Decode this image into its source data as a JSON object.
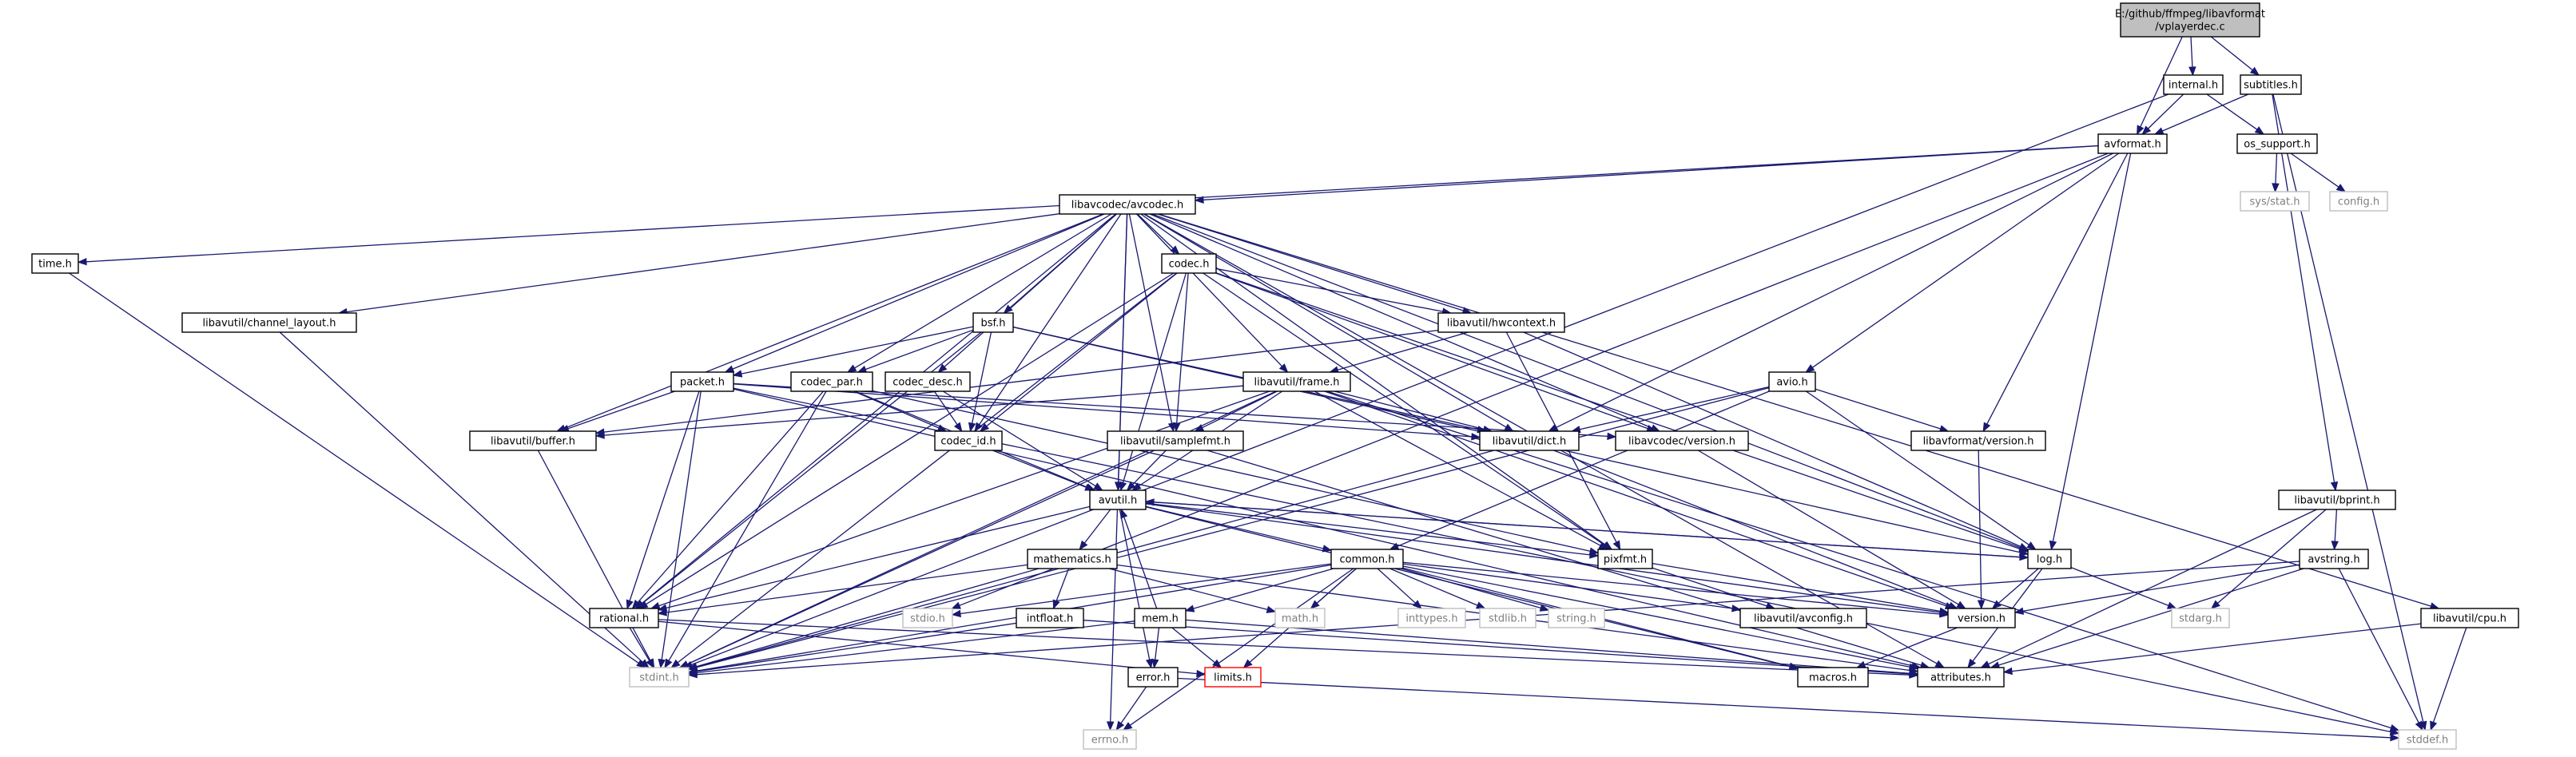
{
  "diagram": {
    "nodes": [
      {
        "id": "root",
        "lines": [
          "E:/github/ffmpeg/libavformat",
          "/vplayerdec.c"
        ],
        "kind": "root"
      },
      {
        "id": "internal",
        "lines": [
          "internal.h"
        ],
        "kind": "doc"
      },
      {
        "id": "subtitles",
        "lines": [
          "subtitles.h"
        ],
        "kind": "doc"
      },
      {
        "id": "avformat",
        "lines": [
          "avformat.h"
        ],
        "kind": "doc"
      },
      {
        "id": "os_support",
        "lines": [
          "os_support.h"
        ],
        "kind": "doc"
      },
      {
        "id": "sys_stat",
        "lines": [
          "sys/stat.h"
        ],
        "kind": "sys"
      },
      {
        "id": "config",
        "lines": [
          "config.h"
        ],
        "kind": "sys"
      },
      {
        "id": "avcodec",
        "lines": [
          "libavcodec/avcodec.h"
        ],
        "kind": "doc"
      },
      {
        "id": "time",
        "lines": [
          "time.h"
        ],
        "kind": "doc"
      },
      {
        "id": "codec",
        "lines": [
          "codec.h"
        ],
        "kind": "doc"
      },
      {
        "id": "channel_layout",
        "lines": [
          "libavutil/channel_layout.h"
        ],
        "kind": "doc"
      },
      {
        "id": "bsf",
        "lines": [
          "bsf.h"
        ],
        "kind": "doc"
      },
      {
        "id": "hwcontext",
        "lines": [
          "libavutil/hwcontext.h"
        ],
        "kind": "doc"
      },
      {
        "id": "packet",
        "lines": [
          "packet.h"
        ],
        "kind": "doc"
      },
      {
        "id": "codec_par",
        "lines": [
          "codec_par.h"
        ],
        "kind": "doc"
      },
      {
        "id": "codec_desc",
        "lines": [
          "codec_desc.h"
        ],
        "kind": "doc"
      },
      {
        "id": "frame",
        "lines": [
          "libavutil/frame.h"
        ],
        "kind": "doc"
      },
      {
        "id": "avio",
        "lines": [
          "avio.h"
        ],
        "kind": "doc"
      },
      {
        "id": "buffer",
        "lines": [
          "libavutil/buffer.h"
        ],
        "kind": "doc"
      },
      {
        "id": "codec_id",
        "lines": [
          "codec_id.h"
        ],
        "kind": "doc"
      },
      {
        "id": "samplefmt",
        "lines": [
          "libavutil/samplefmt.h"
        ],
        "kind": "doc"
      },
      {
        "id": "dict",
        "lines": [
          "libavutil/dict.h"
        ],
        "kind": "doc"
      },
      {
        "id": "avcodec_version",
        "lines": [
          "libavcodec/version.h"
        ],
        "kind": "doc"
      },
      {
        "id": "avformat_version",
        "lines": [
          "libavformat/version.h"
        ],
        "kind": "doc"
      },
      {
        "id": "bprint",
        "lines": [
          "libavutil/bprint.h"
        ],
        "kind": "doc"
      },
      {
        "id": "avutil",
        "lines": [
          "avutil.h"
        ],
        "kind": "doc"
      },
      {
        "id": "pixfmt",
        "lines": [
          "pixfmt.h"
        ],
        "kind": "doc"
      },
      {
        "id": "log",
        "lines": [
          "log.h"
        ],
        "kind": "doc"
      },
      {
        "id": "avstring",
        "lines": [
          "avstring.h"
        ],
        "kind": "doc"
      },
      {
        "id": "mathematics",
        "lines": [
          "mathematics.h"
        ],
        "kind": "doc"
      },
      {
        "id": "common",
        "lines": [
          "common.h"
        ],
        "kind": "doc"
      },
      {
        "id": "rational",
        "lines": [
          "rational.h"
        ],
        "kind": "doc"
      },
      {
        "id": "stdio",
        "lines": [
          "stdio.h"
        ],
        "kind": "sys"
      },
      {
        "id": "intfloat",
        "lines": [
          "intfloat.h"
        ],
        "kind": "doc"
      },
      {
        "id": "mem",
        "lines": [
          "mem.h"
        ],
        "kind": "doc"
      },
      {
        "id": "math",
        "lines": [
          "math.h"
        ],
        "kind": "sys"
      },
      {
        "id": "inttypes",
        "lines": [
          "inttypes.h"
        ],
        "kind": "sys"
      },
      {
        "id": "stdlib",
        "lines": [
          "stdlib.h"
        ],
        "kind": "sys"
      },
      {
        "id": "string",
        "lines": [
          "string.h"
        ],
        "kind": "sys"
      },
      {
        "id": "avconfig",
        "lines": [
          "libavutil/avconfig.h"
        ],
        "kind": "doc"
      },
      {
        "id": "version",
        "lines": [
          "version.h"
        ],
        "kind": "doc"
      },
      {
        "id": "stdarg",
        "lines": [
          "stdarg.h"
        ],
        "kind": "sys"
      },
      {
        "id": "cpu",
        "lines": [
          "libavutil/cpu.h"
        ],
        "kind": "doc"
      },
      {
        "id": "stdint",
        "lines": [
          "stdint.h"
        ],
        "kind": "sys"
      },
      {
        "id": "error",
        "lines": [
          "error.h"
        ],
        "kind": "doc"
      },
      {
        "id": "limits",
        "lines": [
          "limits.h"
        ],
        "kind": "warn"
      },
      {
        "id": "macros",
        "lines": [
          "macros.h"
        ],
        "kind": "doc"
      },
      {
        "id": "attributes",
        "lines": [
          "attributes.h"
        ],
        "kind": "doc"
      },
      {
        "id": "errno",
        "lines": [
          "errno.h"
        ],
        "kind": "sys"
      },
      {
        "id": "stddef",
        "lines": [
          "stddef.h"
        ],
        "kind": "sys"
      }
    ],
    "edges": [
      [
        "root",
        "internal"
      ],
      [
        "root",
        "subtitles"
      ],
      [
        "root",
        "avformat"
      ],
      [
        "internal",
        "avformat"
      ],
      [
        "internal",
        "os_support"
      ],
      [
        "internal",
        "stdint"
      ],
      [
        "subtitles",
        "avformat"
      ],
      [
        "subtitles",
        "bprint"
      ],
      [
        "subtitles",
        "stddef"
      ],
      [
        "avformat",
        "time"
      ],
      [
        "avformat",
        "stdio"
      ],
      [
        "avformat",
        "avcodec"
      ],
      [
        "avformat",
        "dict"
      ],
      [
        "avformat",
        "log"
      ],
      [
        "avformat",
        "avio"
      ],
      [
        "avformat",
        "avformat_version"
      ],
      [
        "os_support",
        "sys_stat"
      ],
      [
        "os_support",
        "config"
      ],
      [
        "time",
        "stdint"
      ],
      [
        "avcodec",
        "errno"
      ],
      [
        "avcodec",
        "channel_layout"
      ],
      [
        "avcodec",
        "buffer"
      ],
      [
        "avcodec",
        "packet"
      ],
      [
        "avcodec",
        "codec_par"
      ],
      [
        "avcodec",
        "codec_desc"
      ],
      [
        "avcodec",
        "bsf"
      ],
      [
        "avcodec",
        "codec"
      ],
      [
        "avcodec",
        "hwcontext"
      ],
      [
        "avcodec",
        "frame"
      ],
      [
        "avcodec",
        "samplefmt"
      ],
      [
        "avcodec",
        "dict"
      ],
      [
        "avcodec",
        "avutil"
      ],
      [
        "avcodec",
        "codec_id"
      ],
      [
        "avcodec",
        "avcodec_version"
      ],
      [
        "avcodec",
        "log"
      ],
      [
        "avcodec",
        "pixfmt"
      ],
      [
        "avcodec",
        "rational"
      ],
      [
        "avcodec",
        "attributes"
      ],
      [
        "avcodec",
        "cpu"
      ],
      [
        "channel_layout",
        "stdint"
      ],
      [
        "codec",
        "codec_id"
      ],
      [
        "codec",
        "avutil"
      ],
      [
        "codec",
        "hwcontext"
      ],
      [
        "codec",
        "samplefmt"
      ],
      [
        "codec",
        "log"
      ],
      [
        "codec",
        "pixfmt"
      ],
      [
        "codec",
        "rational"
      ],
      [
        "codec",
        "avcodec_version"
      ],
      [
        "codec",
        "stdint"
      ],
      [
        "bsf",
        "packet"
      ],
      [
        "bsf",
        "codec_par"
      ],
      [
        "bsf",
        "codec_id"
      ],
      [
        "bsf",
        "dict"
      ],
      [
        "bsf",
        "log"
      ],
      [
        "bsf",
        "rational"
      ],
      [
        "hwcontext",
        "buffer"
      ],
      [
        "hwcontext",
        "frame"
      ],
      [
        "hwcontext",
        "log"
      ],
      [
        "hwcontext",
        "pixfmt"
      ],
      [
        "packet",
        "buffer"
      ],
      [
        "packet",
        "stdint"
      ],
      [
        "packet",
        "stddef"
      ],
      [
        "packet",
        "attributes"
      ],
      [
        "packet",
        "dict"
      ],
      [
        "packet",
        "rational"
      ],
      [
        "packet",
        "avcodec_version"
      ],
      [
        "codec_par",
        "codec_id"
      ],
      [
        "codec_par",
        "avutil"
      ],
      [
        "codec_par",
        "rational"
      ],
      [
        "codec_par",
        "pixfmt"
      ],
      [
        "codec_par",
        "stdint"
      ],
      [
        "codec_desc",
        "codec_id"
      ],
      [
        "codec_desc",
        "avutil"
      ],
      [
        "frame",
        "buffer"
      ],
      [
        "frame",
        "samplefmt"
      ],
      [
        "frame",
        "dict"
      ],
      [
        "frame",
        "avutil"
      ],
      [
        "frame",
        "pixfmt"
      ],
      [
        "frame",
        "rational"
      ],
      [
        "frame",
        "version"
      ],
      [
        "frame",
        "stdint"
      ],
      [
        "frame",
        "stddef"
      ],
      [
        "avio",
        "dict"
      ],
      [
        "avio",
        "log"
      ],
      [
        "avio",
        "avformat_version"
      ],
      [
        "avio",
        "common"
      ],
      [
        "avio",
        "stdint"
      ],
      [
        "buffer",
        "stdint"
      ],
      [
        "codec_id",
        "avutil"
      ],
      [
        "samplefmt",
        "avutil"
      ],
      [
        "samplefmt",
        "attributes"
      ],
      [
        "samplefmt",
        "stdint"
      ],
      [
        "dict",
        "stdint"
      ],
      [
        "dict",
        "version"
      ],
      [
        "avcodec_version",
        "version"
      ],
      [
        "avformat_version",
        "version"
      ],
      [
        "bprint",
        "stdarg"
      ],
      [
        "bprint",
        "avstring"
      ],
      [
        "bprint",
        "attributes"
      ],
      [
        "avutil",
        "common"
      ],
      [
        "avutil",
        "error"
      ],
      [
        "avutil",
        "version"
      ],
      [
        "avutil",
        "mathematics"
      ],
      [
        "avutil",
        "rational"
      ],
      [
        "avutil",
        "log"
      ],
      [
        "avutil",
        "pixfmt"
      ],
      [
        "avutil",
        "macros"
      ],
      [
        "pixfmt",
        "avconfig"
      ],
      [
        "pixfmt",
        "version"
      ],
      [
        "log",
        "attributes"
      ],
      [
        "log",
        "version"
      ],
      [
        "log",
        "stdarg"
      ],
      [
        "log",
        "avutil"
      ],
      [
        "avstring",
        "stddef"
      ],
      [
        "avstring",
        "stdint"
      ],
      [
        "avstring",
        "attributes"
      ],
      [
        "avstring",
        "version"
      ],
      [
        "mathematics",
        "stdint"
      ],
      [
        "mathematics",
        "math"
      ],
      [
        "mathematics",
        "attributes"
      ],
      [
        "mathematics",
        "rational"
      ],
      [
        "mathematics",
        "intfloat"
      ],
      [
        "common",
        "errno"
      ],
      [
        "common",
        "inttypes"
      ],
      [
        "common",
        "limits"
      ],
      [
        "common",
        "math"
      ],
      [
        "common",
        "stdint"
      ],
      [
        "common",
        "stdio"
      ],
      [
        "common",
        "stdlib"
      ],
      [
        "common",
        "string"
      ],
      [
        "common",
        "attributes"
      ],
      [
        "common",
        "macros"
      ],
      [
        "common",
        "version"
      ],
      [
        "common",
        "avconfig"
      ],
      [
        "common",
        "mem"
      ],
      [
        "rational",
        "stdint"
      ],
      [
        "rational",
        "limits"
      ],
      [
        "rational",
        "attributes"
      ],
      [
        "intfloat",
        "stdint"
      ],
      [
        "intfloat",
        "attributes"
      ],
      [
        "mem",
        "limits"
      ],
      [
        "mem",
        "stdint"
      ],
      [
        "mem",
        "attributes"
      ],
      [
        "mem",
        "error"
      ],
      [
        "mem",
        "avutil"
      ],
      [
        "version",
        "macros"
      ],
      [
        "cpu",
        "stddef"
      ],
      [
        "cpu",
        "attributes"
      ],
      [
        "error",
        "errno"
      ],
      [
        "error",
        "stddef"
      ]
    ]
  }
}
